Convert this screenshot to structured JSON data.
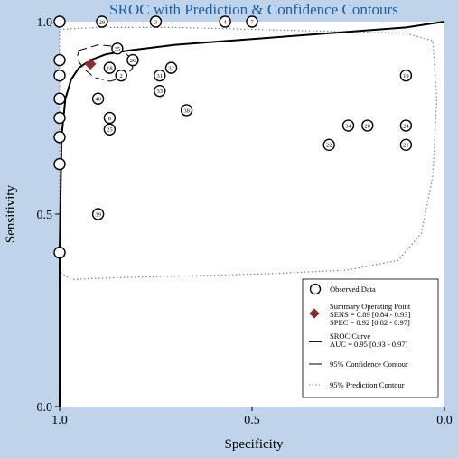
{
  "colors": {
    "background": "#bfd3ea",
    "plot_background": "#ffffff",
    "line": "#000000",
    "summary_point": "#8b2e2e",
    "prediction_contour": "#808080"
  },
  "chart_data": {
    "type": "scatter",
    "title": "SROC with Prediction & Confidence Contours",
    "xlabel": "Specificity",
    "ylabel": "Sensitivity",
    "x_reversed": true,
    "xlim": [
      1.0,
      0.0
    ],
    "ylim": [
      0.0,
      1.0
    ],
    "x_ticks": [
      {
        "value": 1.0,
        "label": "1.0"
      },
      {
        "value": 0.5,
        "label": "0.5"
      },
      {
        "value": 0.0,
        "label": "0.0"
      }
    ],
    "y_ticks": [
      {
        "value": 0.0,
        "label": "0.0"
      },
      {
        "value": 0.5,
        "label": "0.5"
      },
      {
        "value": 1.0,
        "label": "1.0"
      }
    ],
    "grid": false,
    "legend_position": "bottom-right",
    "observed_data": [
      {
        "id": "29",
        "spec": 0.89,
        "sens": 1.0
      },
      {
        "id": "3",
        "spec": 0.75,
        "sens": 1.0
      },
      {
        "id": "4",
        "spec": 0.57,
        "sens": 1.0
      },
      {
        "id": "7",
        "spec": 0.5,
        "sens": 1.0
      },
      {
        "id": "19",
        "spec": 0.1,
        "sens": 0.86
      },
      {
        "id": "35",
        "spec": 0.85,
        "sens": 0.93
      },
      {
        "id": "26",
        "spec": 0.81,
        "sens": 0.9
      },
      {
        "id": "18",
        "spec": 0.87,
        "sens": 0.88
      },
      {
        "id": "2",
        "spec": 0.84,
        "sens": 0.86
      },
      {
        "id": "31",
        "spec": 0.74,
        "sens": 0.86
      },
      {
        "id": "32",
        "spec": 0.71,
        "sens": 0.88
      },
      {
        "id": "33",
        "spec": 0.74,
        "sens": 0.82
      },
      {
        "id": "40",
        "spec": 0.9,
        "sens": 0.8
      },
      {
        "id": "38",
        "spec": 0.67,
        "sens": 0.77
      },
      {
        "id": "8",
        "spec": 0.87,
        "sens": 0.75
      },
      {
        "id": "25",
        "spec": 0.87,
        "sens": 0.72
      },
      {
        "id": "34",
        "spec": 0.25,
        "sens": 0.73
      },
      {
        "id": "20",
        "spec": 0.2,
        "sens": 0.73
      },
      {
        "id": "24",
        "spec": 0.1,
        "sens": 0.73
      },
      {
        "id": "22",
        "spec": 0.3,
        "sens": 0.68
      },
      {
        "id": "21",
        "spec": 0.1,
        "sens": 0.68
      },
      {
        "id": "39",
        "spec": 0.9,
        "sens": 0.5
      },
      {
        "id": "",
        "spec": 1.0,
        "sens": 1.0
      },
      {
        "id": "",
        "spec": 1.0,
        "sens": 0.9
      },
      {
        "id": "",
        "spec": 1.0,
        "sens": 0.86
      },
      {
        "id": "",
        "spec": 1.0,
        "sens": 0.8
      },
      {
        "id": "",
        "spec": 1.0,
        "sens": 0.75
      },
      {
        "id": "",
        "spec": 1.0,
        "sens": 0.7
      },
      {
        "id": "",
        "spec": 1.0,
        "sens": 0.63
      },
      {
        "id": "",
        "spec": 1.0,
        "sens": 0.4
      }
    ],
    "summary_point": {
      "spec": 0.92,
      "sens": 0.89
    },
    "sroc_curve": [
      [
        1.0,
        0.0
      ],
      [
        1.0,
        0.4
      ],
      [
        0.995,
        0.7
      ],
      [
        0.985,
        0.8
      ],
      [
        0.97,
        0.85
      ],
      [
        0.95,
        0.88
      ],
      [
        0.92,
        0.9
      ],
      [
        0.88,
        0.915
      ],
      [
        0.82,
        0.925
      ],
      [
        0.7,
        0.94
      ],
      [
        0.5,
        0.955
      ],
      [
        0.3,
        0.97
      ],
      [
        0.1,
        0.985
      ],
      [
        0.0,
        1.0
      ]
    ],
    "confidence_contour": [
      [
        0.95,
        0.925
      ],
      [
        0.9,
        0.94
      ],
      [
        0.85,
        0.935
      ],
      [
        0.82,
        0.91
      ],
      [
        0.81,
        0.88
      ],
      [
        0.83,
        0.855
      ],
      [
        0.87,
        0.845
      ],
      [
        0.91,
        0.855
      ],
      [
        0.94,
        0.88
      ],
      [
        0.955,
        0.905
      ],
      [
        0.95,
        0.925
      ]
    ],
    "prediction_contour": [
      [
        1.0,
        0.98
      ],
      [
        0.9,
        0.985
      ],
      [
        0.7,
        0.985
      ],
      [
        0.5,
        0.98
      ],
      [
        0.3,
        0.975
      ],
      [
        0.1,
        0.97
      ],
      [
        0.03,
        0.95
      ],
      [
        0.02,
        0.8
      ],
      [
        0.03,
        0.6
      ],
      [
        0.06,
        0.45
      ],
      [
        0.12,
        0.38
      ],
      [
        0.25,
        0.355
      ],
      [
        0.45,
        0.345
      ],
      [
        0.65,
        0.34
      ],
      [
        0.85,
        0.335
      ],
      [
        0.97,
        0.33
      ],
      [
        1.0,
        0.35
      ]
    ],
    "legend": {
      "observed": "Observed Data",
      "summary_title": "Summary Operating Point",
      "summary_sens": "SENS = 0.89 [0.84 - 0.93]",
      "summary_spec": "SPEC = 0.92 [0.82 - 0.97]",
      "sroc_title": "SROC Curve",
      "sroc_auc": "AUC = 0.95 [0.93 - 0.97]",
      "confidence": "95% Confidence Contour",
      "prediction": "95% Prediction Contour"
    }
  }
}
